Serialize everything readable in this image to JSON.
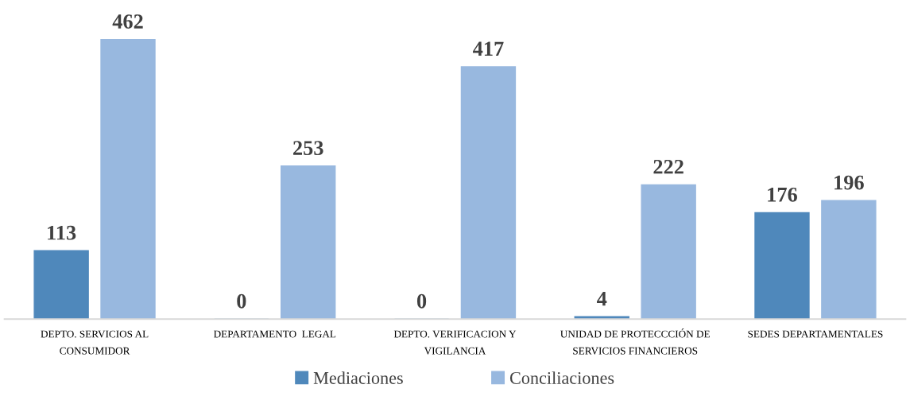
{
  "chart_data": {
    "type": "bar",
    "data_labels": true,
    "legend": "bottom",
    "grid": false,
    "categories": [
      "DEPTO. SERVICIOS AL\nCONSUMIDOR",
      "DEPARTAMENTO  LEGAL",
      "DEPTO. VERIFICACION Y\nVIGILANCIA",
      "UNIDAD DE PROTECCCIÓN DE\nSERVICIOS FINANCIEROS",
      "SEDES DEPARTAMENTALES"
    ],
    "series": [
      {
        "name": "Mediaciones",
        "color": "#4f88bb",
        "values": [
          113,
          0,
          0,
          4,
          176
        ]
      },
      {
        "name": "Conciliaciones",
        "color": "#98b8df",
        "values": [
          462,
          253,
          417,
          222,
          196
        ]
      }
    ],
    "tick_labels": "x"
  }
}
